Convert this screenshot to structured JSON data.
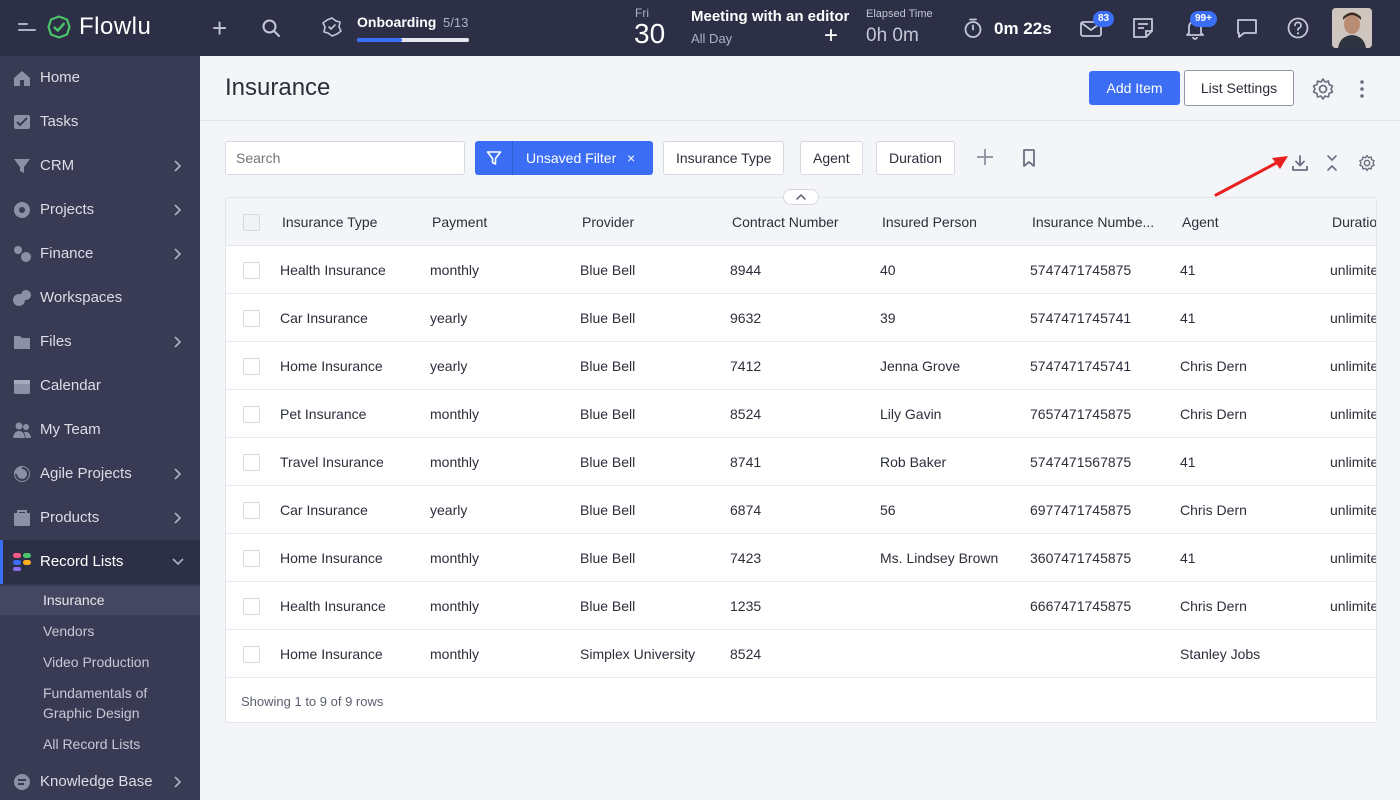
{
  "topbar": {
    "logo": "Flowlu",
    "onboarding_title": "Onboarding",
    "onboarding_count": "5/13",
    "onboarding_progress": 0.4,
    "day_name": "Fri",
    "day_num": "30",
    "meeting_title": "Meeting with an editor",
    "meeting_sub": "All Day",
    "elapsed_label": "Elapsed Time",
    "elapsed_value": "0h 0m",
    "timer": "0m 22s",
    "mail_badge": "83",
    "bell_badge": "99+",
    "icons": [
      "menu-icon",
      "flowlu-logo",
      "plus-icon",
      "search-icon",
      "onboarding-icon",
      "timer-icon",
      "mail-icon",
      "notes-icon",
      "bell-icon",
      "chat-icon",
      "help-icon"
    ]
  },
  "sidebar": {
    "items": [
      {
        "label": "Home",
        "chevron": false
      },
      {
        "label": "Tasks",
        "chevron": false
      },
      {
        "label": "CRM",
        "chevron": true
      },
      {
        "label": "Projects",
        "chevron": true
      },
      {
        "label": "Finance",
        "chevron": true
      },
      {
        "label": "Workspaces",
        "chevron": false
      },
      {
        "label": "Files",
        "chevron": true
      },
      {
        "label": "Calendar",
        "chevron": false
      },
      {
        "label": "My Team",
        "chevron": false
      },
      {
        "label": "Agile Projects",
        "chevron": true
      },
      {
        "label": "Products",
        "chevron": true
      },
      {
        "label": "Record Lists",
        "chevron": true
      }
    ],
    "sub_items": [
      "Insurance",
      "Vendors",
      "Video Production",
      "Fundamentals of Graphic Design",
      "All Record Lists"
    ],
    "last_item": "Knowledge Base"
  },
  "page": {
    "title": "Insurance",
    "add_item": "Add Item",
    "list_settings": "List Settings"
  },
  "filters": {
    "search_placeholder": "Search",
    "unsaved_filter": "Unsaved Filter",
    "close": "×",
    "chips": [
      "Insurance Type",
      "Agent",
      "Duration"
    ]
  },
  "table": {
    "columns": [
      "Insurance Type",
      "Payment",
      "Provider",
      "Contract Number",
      "Insured Person",
      "Insurance Numbe...",
      "Agent",
      "Duratio"
    ],
    "rows": [
      [
        "Health Insurance",
        "monthly",
        "Blue Bell",
        "8944",
        "40",
        "5747471745875",
        "41",
        "unlimite"
      ],
      [
        "Car Insurance",
        "yearly",
        "Blue Bell",
        "9632",
        "39",
        "5747471745741",
        "41",
        "unlimite"
      ],
      [
        "Home Insurance",
        "yearly",
        "Blue Bell",
        "7412",
        "Jenna Grove",
        "5747471745741",
        "Chris Dern",
        "unlimite"
      ],
      [
        "Pet Insurance",
        "monthly",
        "Blue Bell",
        "8524",
        "Lily Gavin",
        "7657471745875",
        "Chris Dern",
        "unlimite"
      ],
      [
        "Travel Insurance",
        "monthly",
        "Blue Bell",
        "8741",
        "Rob Baker",
        "5747471567875",
        "41",
        "unlimite"
      ],
      [
        "Car Insurance",
        "yearly",
        "Blue Bell",
        "6874",
        "56",
        "6977471745875",
        "Chris Dern",
        "unlimite"
      ],
      [
        "Home Insurance",
        "monthly",
        "Blue Bell",
        "7423",
        "Ms. Lindsey Brown",
        "3607471745875",
        "41",
        "unlimite"
      ],
      [
        "Health Insurance",
        "monthly",
        "Blue Bell",
        "1235",
        "",
        "6667471745875",
        "Chris Dern",
        "unlimite"
      ],
      [
        "Home Insurance",
        "monthly",
        "Simplex University",
        "8524",
        "",
        "",
        "Stanley Jobs",
        ""
      ]
    ],
    "footer": "Showing 1 to 9 of 9 rows"
  },
  "colors": {
    "accent": "#3b6ef5",
    "topbar": "#2c2f45",
    "sidebar": "#383b53",
    "arrow": "#e8201f"
  }
}
